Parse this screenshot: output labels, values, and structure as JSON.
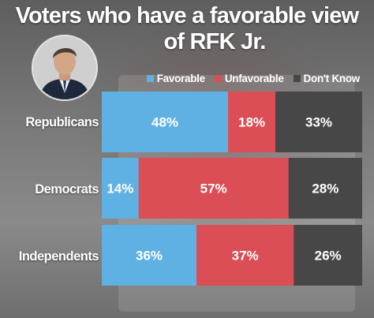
{
  "title_line1": "Voters who have a favorable view",
  "title_line2": "of RFK Jr.",
  "colors": {
    "favorable": "#5fb1e3",
    "unfavorable": "#dc4e55",
    "dont_know": "#474747"
  },
  "chart_data": {
    "type": "bar",
    "stacked": true,
    "orientation": "horizontal",
    "categories": [
      "Republicans",
      "Democrats",
      "Independents"
    ],
    "series": [
      {
        "name": "Favorable",
        "values": [
          48,
          14,
          36
        ],
        "labels": [
          "48%",
          "14%",
          "36%"
        ]
      },
      {
        "name": "Unfavorable",
        "values": [
          18,
          57,
          37
        ],
        "labels": [
          "18%",
          "57%",
          "37%"
        ]
      },
      {
        "name": "Don't Know",
        "values": [
          33,
          28,
          26
        ],
        "labels": [
          "33%",
          "28%",
          "26%"
        ]
      }
    ],
    "legend_position": "top-right"
  }
}
